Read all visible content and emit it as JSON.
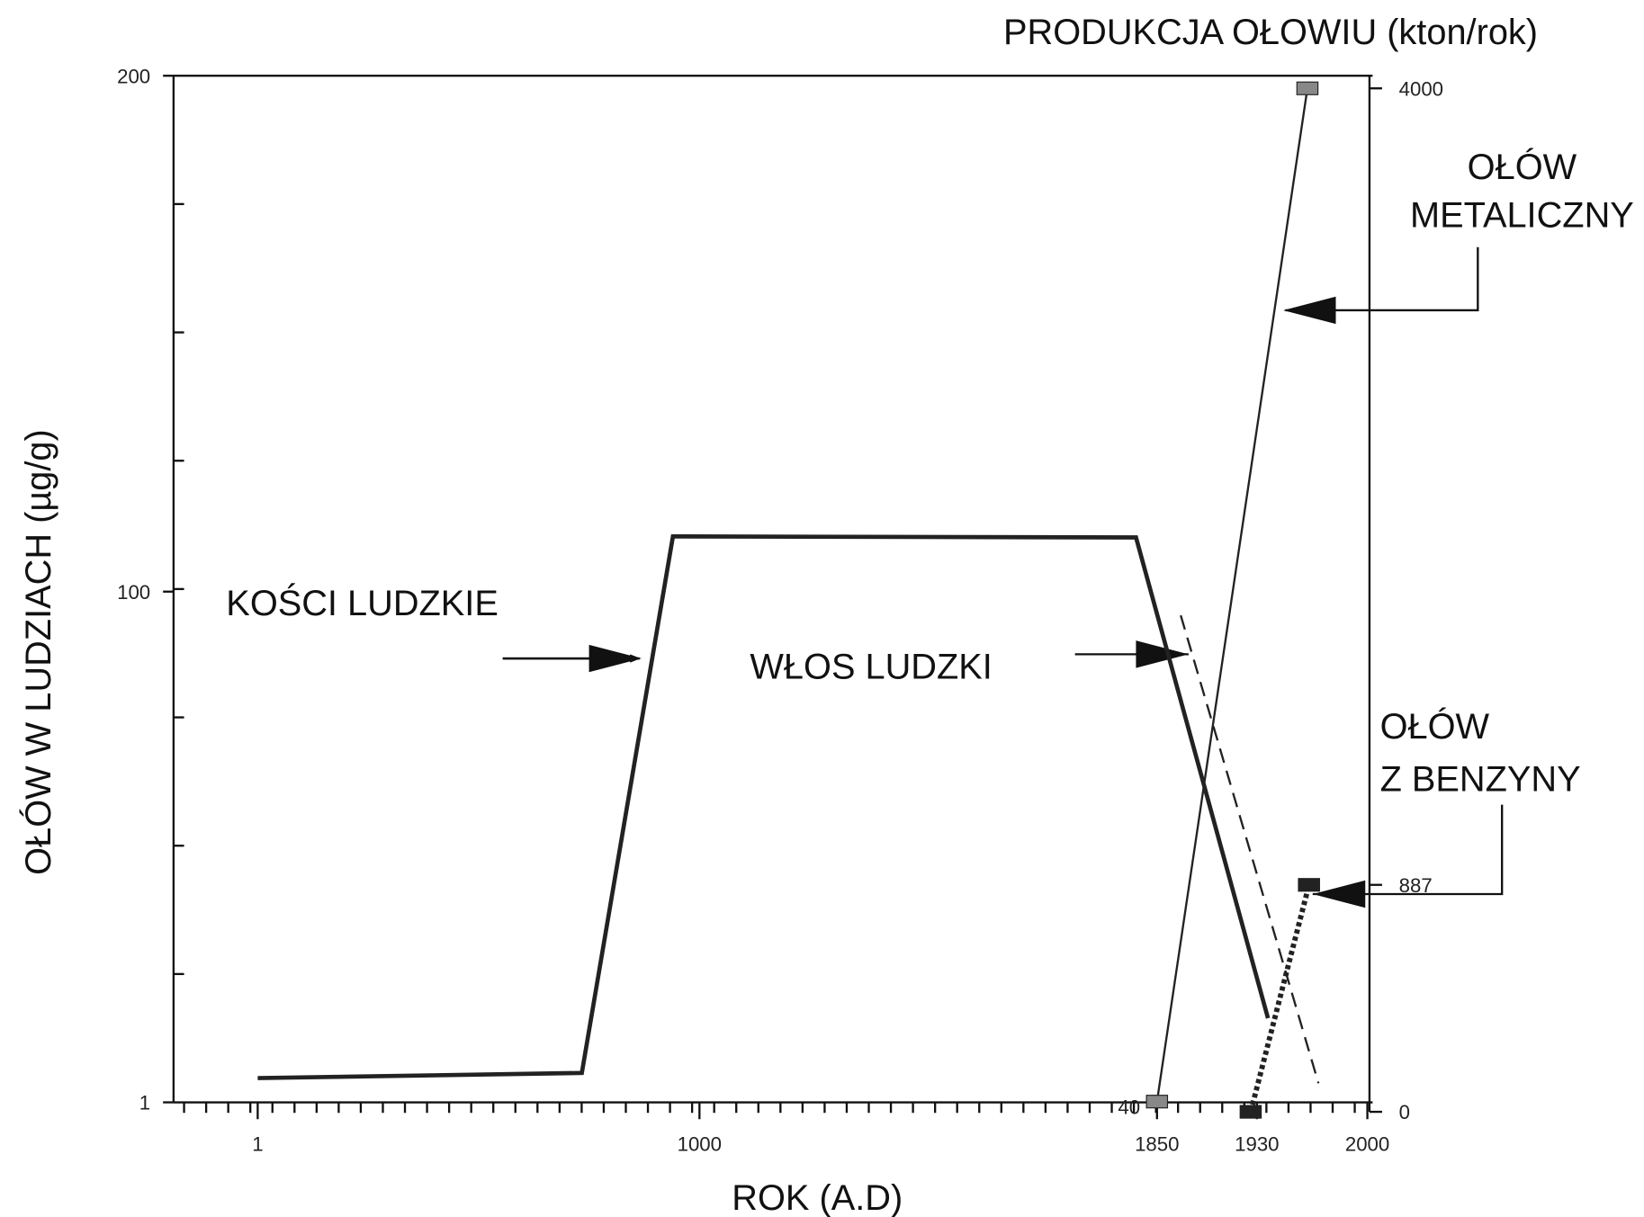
{
  "chart_data": {
    "type": "line",
    "y_label": "OŁÓW W LUDZIACH (µg/g)",
    "x_label": "ROK (A.D)",
    "y2_label": "PRODUKCJA OŁOWIU (kton/rok)",
    "annotations": [
      "KOŚCI LUDZKIE",
      "WŁOS LUDZKI",
      "OŁÓW",
      "METALICZNY",
      "OŁÓW",
      "Z BENZYNY"
    ],
    "xlim": [
      1,
      2000
    ],
    "xticks": [
      1,
      1000,
      1850,
      1930,
      2000
    ],
    "ylim": [
      1,
      200
    ],
    "yticks": [
      1,
      100,
      200
    ],
    "y2lim": [
      0,
      4000
    ],
    "y2ticks": [
      0,
      887,
      4000
    ],
    "series": [
      {
        "name": "KOŚCI LUDZKIE",
        "color": "#222",
        "x": [
          1,
          734,
          940,
          1811,
          1937
        ],
        "values": [
          5.7,
          6.7,
          110.7,
          110.5,
          17.3
        ]
      },
      {
        "name": "WŁOS LUDZKI",
        "color": "#222",
        "x": [
          1869,
          1969
        ],
        "values": [
          95.4,
          4.7
        ]
      },
      {
        "name": "OŁÓW METALICZNY",
        "color": "#222",
        "axis": "y2",
        "x": [
          1850,
          1962
        ],
        "values": [
          40,
          4000
        ]
      },
      {
        "name": "OŁÓW Z BENZYNY",
        "color": "#222",
        "axis": "y2",
        "x": [
          1925,
          1963
        ],
        "values": [
          0,
          887
        ]
      }
    ]
  }
}
